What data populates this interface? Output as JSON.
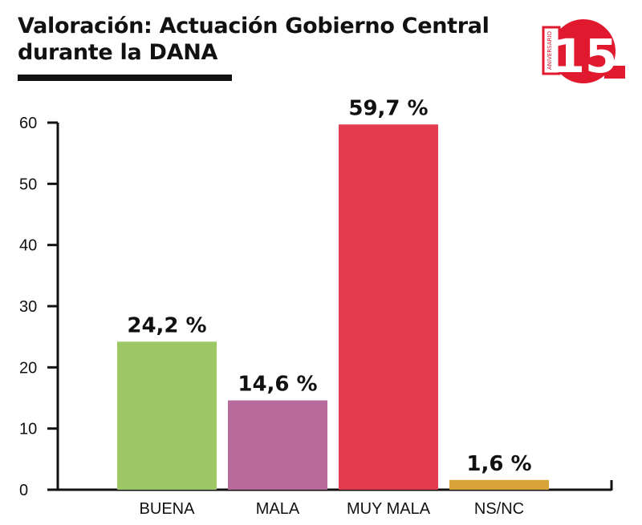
{
  "header": {
    "title_line1": "Valoración: Actuación Gobierno Central",
    "title_line2": "durante la DANA"
  },
  "logo": {
    "number": "15",
    "text": "ANIVERSARIO",
    "color": "#e0192f"
  },
  "chart_data": {
    "type": "bar",
    "title": "Valoración: Actuación Gobierno Central durante la DANA",
    "categories": [
      "BUENA",
      "MALA",
      "MUY MALA",
      "NS/NC"
    ],
    "values": [
      24.2,
      14.6,
      59.7,
      1.6
    ],
    "data_labels": [
      "24,2 %",
      "14,6 %",
      "59,7 %",
      "1,6 %"
    ],
    "colors": [
      "#9dc865",
      "#b76a9b",
      "#e33b50",
      "#d8a33a"
    ],
    "yticks": [
      "0",
      "10",
      "20",
      "30",
      "40",
      "50",
      "60"
    ],
    "ylim": [
      0,
      60
    ],
    "grid": false,
    "legend": "none"
  }
}
